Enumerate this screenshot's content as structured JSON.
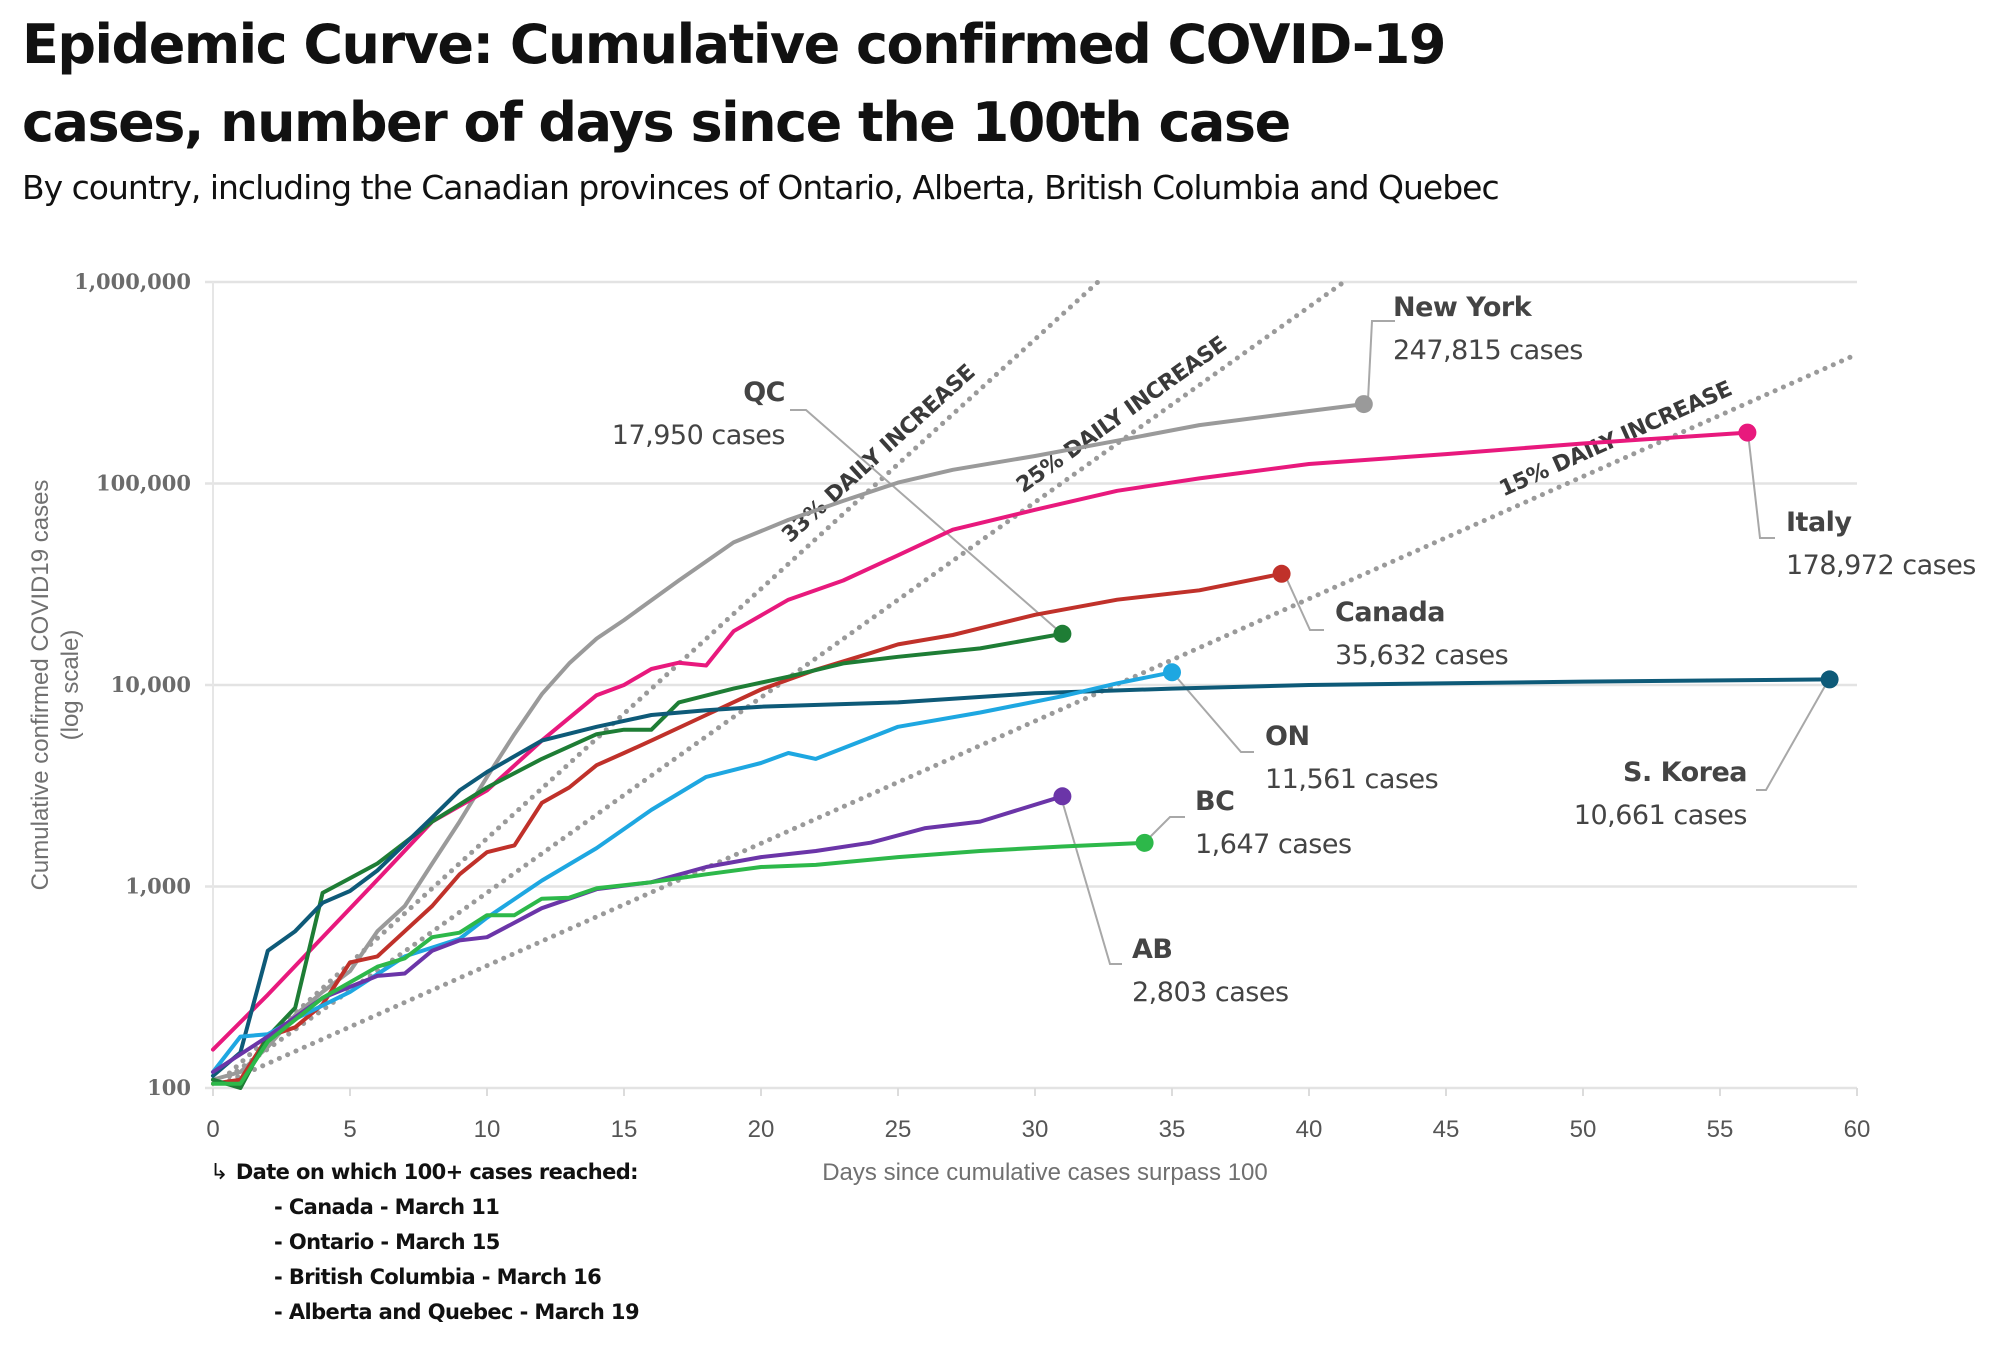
{
  "title_line1": "Epidemic Curve: Cumulative confirmed COVID-19",
  "title_line2": "cases, number of days since the 100th case",
  "subtitle": "By country, including the Canadian provinces of Ontario, Alberta, British Columbia and Quebec",
  "footnote": {
    "icon": "arrow-turn-right-icon",
    "heading": "Date on which 100+ cases reached:",
    "items": [
      "- Canada - March 11",
      "- Ontario - March 15",
      "- British Columbia - March 16",
      "- Alberta and Quebec - March 19"
    ]
  },
  "chart_data": {
    "type": "line",
    "title": "Epidemic Curve: Cumulative confirmed COVID-19 cases, number of days since the 100th case",
    "subtitle": "By country, including the Canadian provinces of Ontario, Alberta, British Columbia and Quebec",
    "xlabel": "Days since cumulative cases surpass 100",
    "ylabel": "Cumulative confirmed COVID19 cases",
    "ylabel2": "(log scale)",
    "xlim": [
      0,
      60
    ],
    "ylim": [
      100,
      1000000
    ],
    "yscale": "log",
    "grid": "horizontal",
    "x_ticks": [
      "0",
      "5",
      "10",
      "15",
      "20",
      "25",
      "30",
      "35",
      "40",
      "45",
      "50",
      "55",
      "60"
    ],
    "y_ticks": [
      {
        "value": 100,
        "label": "100"
      },
      {
        "value": 1000,
        "label": "1,000"
      },
      {
        "value": 10000,
        "label": "10,000"
      },
      {
        "value": 100000,
        "label": "100,000"
      },
      {
        "value": 1000000,
        "label": "1,000,000"
      }
    ],
    "reference_lines": [
      {
        "name": "33% DAILY INCREASE",
        "rate": 0.33,
        "start_value": 100
      },
      {
        "name": "25% DAILY INCREASE",
        "rate": 0.25,
        "start_value": 100
      },
      {
        "name": "15% DAILY INCREASE",
        "rate": 0.15,
        "start_value": 100
      }
    ],
    "series": [
      {
        "key": "newyork",
        "name": "New York",
        "label_value": "247,815 cases",
        "color": "#9a9a9a",
        "points": [
          [
            0,
            110
          ],
          [
            1,
            120
          ],
          [
            2,
            160
          ],
          [
            3,
            230
          ],
          [
            4,
            300
          ],
          [
            5,
            380
          ],
          [
            6,
            600
          ],
          [
            7,
            800
          ],
          [
            8,
            1300
          ],
          [
            9,
            2100
          ],
          [
            10,
            3500
          ],
          [
            11,
            5700
          ],
          [
            12,
            9000
          ],
          [
            13,
            12800
          ],
          [
            14,
            17000
          ],
          [
            15,
            21000
          ],
          [
            17,
            33000
          ],
          [
            19,
            51000
          ],
          [
            21,
            66000
          ],
          [
            23,
            82000
          ],
          [
            25,
            101000
          ],
          [
            27,
            117000
          ],
          [
            30,
            137000
          ],
          [
            33,
            163000
          ],
          [
            36,
            195000
          ],
          [
            39,
            220000
          ],
          [
            42,
            247815
          ]
        ]
      },
      {
        "key": "italy",
        "name": "Italy",
        "label_value": "178,972 cases",
        "color": "#e8197d",
        "points": [
          [
            0,
            155
          ],
          [
            2,
            290
          ],
          [
            4,
            560
          ],
          [
            6,
            1080
          ],
          [
            8,
            2100
          ],
          [
            10,
            3000
          ],
          [
            12,
            5300
          ],
          [
            14,
            8900
          ],
          [
            15,
            10000
          ],
          [
            16,
            12000
          ],
          [
            17,
            12900
          ],
          [
            18,
            12500
          ],
          [
            19,
            18500
          ],
          [
            21,
            26500
          ],
          [
            23,
            33000
          ],
          [
            25,
            44000
          ],
          [
            27,
            59000
          ],
          [
            30,
            74000
          ],
          [
            33,
            92000
          ],
          [
            36,
            106000
          ],
          [
            40,
            125000
          ],
          [
            45,
            140000
          ],
          [
            50,
            158000
          ],
          [
            56,
            178972
          ]
        ]
      },
      {
        "key": "canada",
        "name": "Canada",
        "label_value": "35,632 cases",
        "color": "#c0312a",
        "points": [
          [
            0,
            105
          ],
          [
            1,
            110
          ],
          [
            2,
            180
          ],
          [
            3,
            200
          ],
          [
            4,
            260
          ],
          [
            5,
            420
          ],
          [
            6,
            450
          ],
          [
            7,
            600
          ],
          [
            8,
            800
          ],
          [
            9,
            1150
          ],
          [
            10,
            1480
          ],
          [
            11,
            1600
          ],
          [
            12,
            2600
          ],
          [
            13,
            3100
          ],
          [
            14,
            4000
          ],
          [
            15,
            4600
          ],
          [
            16,
            5300
          ],
          [
            18,
            7100
          ],
          [
            20,
            9500
          ],
          [
            22,
            11900
          ],
          [
            24,
            14400
          ],
          [
            25,
            15900
          ],
          [
            27,
            17700
          ],
          [
            30,
            22300
          ],
          [
            33,
            26500
          ],
          [
            36,
            29500
          ],
          [
            39,
            35632
          ]
        ]
      },
      {
        "key": "qc",
        "name": "QC",
        "label_value": "17,950 cases",
        "color": "#1e7d35",
        "points": [
          [
            0,
            110
          ],
          [
            1,
            100
          ],
          [
            2,
            180
          ],
          [
            3,
            250
          ],
          [
            4,
            930
          ],
          [
            5,
            1100
          ],
          [
            6,
            1300
          ],
          [
            8,
            2100
          ],
          [
            10,
            3100
          ],
          [
            12,
            4300
          ],
          [
            14,
            5700
          ],
          [
            15,
            6000
          ],
          [
            16,
            6000
          ],
          [
            17,
            8200
          ],
          [
            19,
            9600
          ],
          [
            21,
            11000
          ],
          [
            23,
            12800
          ],
          [
            25,
            13800
          ],
          [
            28,
            15200
          ],
          [
            31,
            17950
          ]
        ]
      },
      {
        "key": "skorea",
        "name": "S. Korea",
        "label_value": "10,661 cases",
        "color": "#0e5a78",
        "points": [
          [
            0,
            115
          ],
          [
            1,
            150
          ],
          [
            2,
            480
          ],
          [
            3,
            600
          ],
          [
            4,
            830
          ],
          [
            5,
            950
          ],
          [
            6,
            1200
          ],
          [
            8,
            2200
          ],
          [
            9,
            3000
          ],
          [
            10,
            3700
          ],
          [
            12,
            5300
          ],
          [
            14,
            6200
          ],
          [
            16,
            7100
          ],
          [
            18,
            7500
          ],
          [
            20,
            7800
          ],
          [
            25,
            8200
          ],
          [
            30,
            9100
          ],
          [
            35,
            9600
          ],
          [
            40,
            10000
          ],
          [
            50,
            10400
          ],
          [
            59,
            10661
          ]
        ]
      },
      {
        "key": "on",
        "name": "ON",
        "label_value": "11,561 cases",
        "color": "#1ea7e1",
        "points": [
          [
            0,
            120
          ],
          [
            1,
            180
          ],
          [
            2,
            185
          ],
          [
            3,
            220
          ],
          [
            5,
            300
          ],
          [
            7,
            450
          ],
          [
            9,
            550
          ],
          [
            10,
            700
          ],
          [
            12,
            1070
          ],
          [
            14,
            1550
          ],
          [
            16,
            2400
          ],
          [
            18,
            3500
          ],
          [
            20,
            4100
          ],
          [
            21,
            4600
          ],
          [
            22,
            4300
          ],
          [
            25,
            6200
          ],
          [
            28,
            7300
          ],
          [
            31,
            8800
          ],
          [
            33,
            10200
          ],
          [
            35,
            11561
          ]
        ]
      },
      {
        "key": "ab",
        "name": "AB",
        "label_value": "2,803 cases",
        "color": "#6b35a8",
        "points": [
          [
            0,
            120
          ],
          [
            2,
            180
          ],
          [
            4,
            280
          ],
          [
            6,
            360
          ],
          [
            7,
            370
          ],
          [
            8,
            480
          ],
          [
            9,
            540
          ],
          [
            10,
            560
          ],
          [
            12,
            780
          ],
          [
            14,
            970
          ],
          [
            16,
            1050
          ],
          [
            18,
            1250
          ],
          [
            20,
            1400
          ],
          [
            22,
            1500
          ],
          [
            24,
            1650
          ],
          [
            26,
            1950
          ],
          [
            28,
            2100
          ],
          [
            31,
            2803
          ]
        ]
      },
      {
        "key": "bc",
        "name": "BC",
        "label_value": "1,647 cases",
        "color": "#2db84a",
        "points": [
          [
            0,
            105
          ],
          [
            1,
            105
          ],
          [
            2,
            170
          ],
          [
            4,
            280
          ],
          [
            6,
            400
          ],
          [
            7,
            440
          ],
          [
            8,
            560
          ],
          [
            9,
            590
          ],
          [
            10,
            720
          ],
          [
            11,
            720
          ],
          [
            12,
            870
          ],
          [
            13,
            880
          ],
          [
            14,
            980
          ],
          [
            16,
            1050
          ],
          [
            18,
            1150
          ],
          [
            20,
            1250
          ],
          [
            22,
            1280
          ],
          [
            25,
            1400
          ],
          [
            28,
            1500
          ],
          [
            31,
            1580
          ],
          [
            34,
            1647
          ]
        ]
      }
    ]
  }
}
